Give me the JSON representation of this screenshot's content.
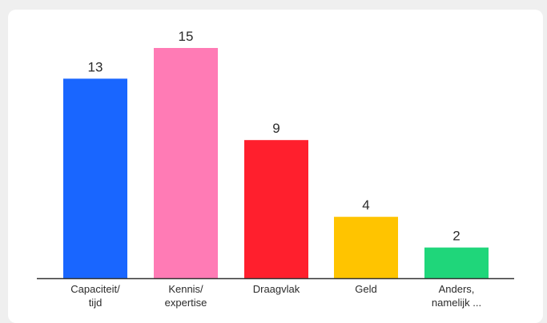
{
  "chart_data": {
    "type": "bar",
    "categories": [
      "Capaciteit/\ntijd",
      "Kennis/\nexpertise",
      "Draagvlak",
      "Geld",
      "Anders,\nnamelijk ..."
    ],
    "values": [
      13,
      15,
      9,
      4,
      2
    ],
    "colors": [
      "#1966ff",
      "#ff7bb5",
      "#ff1f2d",
      "#ffc400",
      "#1fd67a"
    ],
    "ylim": [
      0,
      15
    ],
    "grid": false,
    "legend": "none"
  }
}
